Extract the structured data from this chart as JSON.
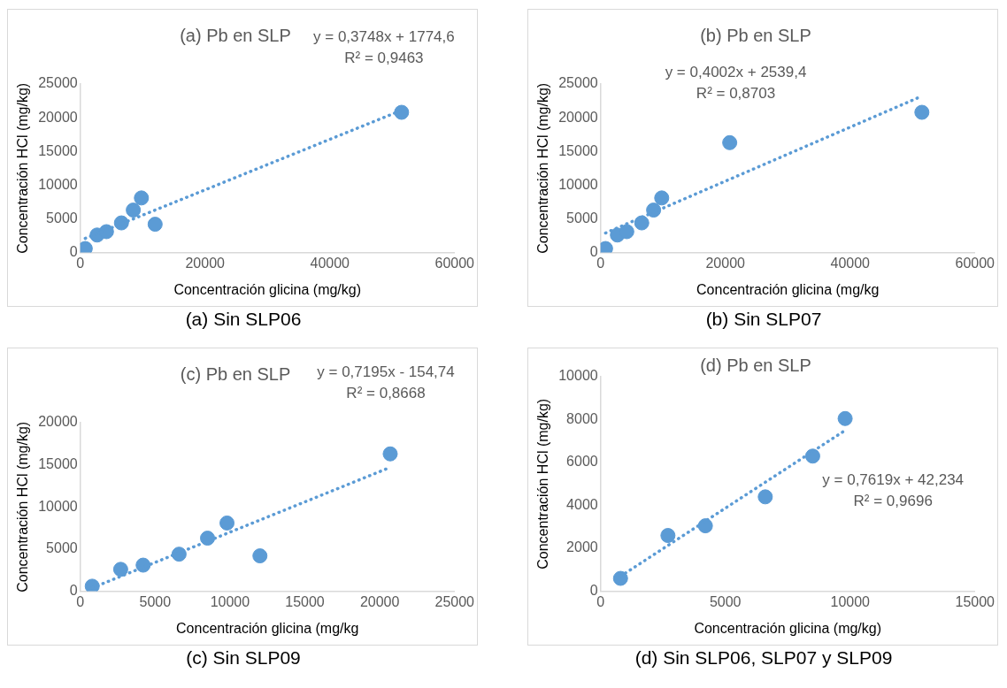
{
  "chart_data": [
    {
      "type": "scatter",
      "title": "(a) Pb en SLP",
      "subtitle": "(a)  Sin SLP06",
      "xlabel": "Concentración glicina (mg/kg)",
      "ylabel": "Concentración HCl (mg/kg)",
      "xlim": [
        0,
        60000
      ],
      "xticks": [
        0,
        20000,
        40000,
        60000
      ],
      "ylim": [
        0,
        25000
      ],
      "yticks": [
        0,
        5000,
        10000,
        15000,
        20000,
        25000
      ],
      "annotations": [
        "y = 0,3748x + 1774,6",
        "R² = 0,9463"
      ],
      "series": [
        {
          "marker": "circle",
          "color": "#5b9bd5",
          "x": [
            800,
            2700,
            4200,
            6600,
            8500,
            9800,
            12000,
            51500
          ],
          "values": [
            600,
            2600,
            3100,
            4400,
            6300,
            8100,
            4200,
            20800
          ]
        },
        {
          "type": "line",
          "color": "#5b9bd5",
          "line_style": "dotted",
          "x": [
            800,
            51500
          ],
          "values": [
            2100,
            21100
          ]
        }
      ]
    },
    {
      "type": "scatter",
      "title": "(b) Pb en SLP",
      "subtitle": "(b)  Sin SLP07",
      "xlabel": "Concentración glicina (mg/kg",
      "ylabel": "Concentración HCl (mg/kg)",
      "xlim": [
        0,
        60000
      ],
      "xticks": [
        0,
        20000,
        40000,
        60000
      ],
      "ylim": [
        0,
        25000
      ],
      "yticks": [
        0,
        5000,
        10000,
        15000,
        20000,
        25000
      ],
      "annotations": [
        "y = 0,4002x + 2539,4",
        "R² = 0,8703"
      ],
      "series": [
        {
          "marker": "circle",
          "color": "#5b9bd5",
          "x": [
            800,
            2700,
            4200,
            6600,
            8500,
            9800,
            20700,
            51500
          ],
          "values": [
            600,
            2600,
            3100,
            4400,
            6300,
            8100,
            16300,
            20800
          ]
        },
        {
          "type": "line",
          "color": "#5b9bd5",
          "line_style": "dotted",
          "x": [
            800,
            51500
          ],
          "values": [
            2900,
            23200
          ]
        }
      ]
    },
    {
      "type": "scatter",
      "title": "(c) Pb en SLP",
      "subtitle": "(c)  Sin SLP09",
      "xlabel": "Concentración glicina (mg/kg",
      "ylabel": "Concentración HCl (mg/kg)",
      "xlim": [
        0,
        25000
      ],
      "xticks": [
        0,
        5000,
        10000,
        15000,
        20000,
        25000
      ],
      "ylim": [
        0,
        20000
      ],
      "yticks": [
        0,
        5000,
        10000,
        15000,
        20000
      ],
      "annotations": [
        "y = 0,7195x - 154,74",
        "R² = 0,8668"
      ],
      "series": [
        {
          "marker": "circle",
          "color": "#5b9bd5",
          "x": [
            800,
            2700,
            4200,
            6600,
            8500,
            9800,
            12000,
            20700
          ],
          "values": [
            600,
            2600,
            3100,
            4400,
            6300,
            8100,
            4200,
            16300
          ]
        },
        {
          "type": "line",
          "color": "#5b9bd5",
          "line_style": "dotted",
          "x": [
            800,
            20700
          ],
          "values": [
            400,
            14700
          ]
        }
      ]
    },
    {
      "type": "scatter",
      "title": "(d) Pb en SLP",
      "subtitle": "(d)  Sin SLP06, SLP07 y SLP09",
      "xlabel": "Concentración glicina (mg/kg)",
      "ylabel": "Concentración HCl (mg/kg)",
      "xlim": [
        0,
        15000
      ],
      "xticks": [
        0,
        5000,
        10000,
        15000
      ],
      "ylim": [
        0,
        10000
      ],
      "yticks": [
        0,
        2000,
        4000,
        6000,
        8000,
        10000
      ],
      "annotations": [
        "y = 0,7619x + 42,234",
        "R² = 0,9696"
      ],
      "series": [
        {
          "marker": "circle",
          "color": "#5b9bd5",
          "x": [
            800,
            2700,
            4200,
            6600,
            8500,
            9800
          ],
          "values": [
            600,
            2600,
            3050,
            4400,
            6300,
            8050
          ]
        },
        {
          "type": "line",
          "color": "#5b9bd5",
          "line_style": "dotted",
          "x": [
            800,
            9800
          ],
          "values": [
            700,
            7500
          ]
        }
      ]
    }
  ]
}
